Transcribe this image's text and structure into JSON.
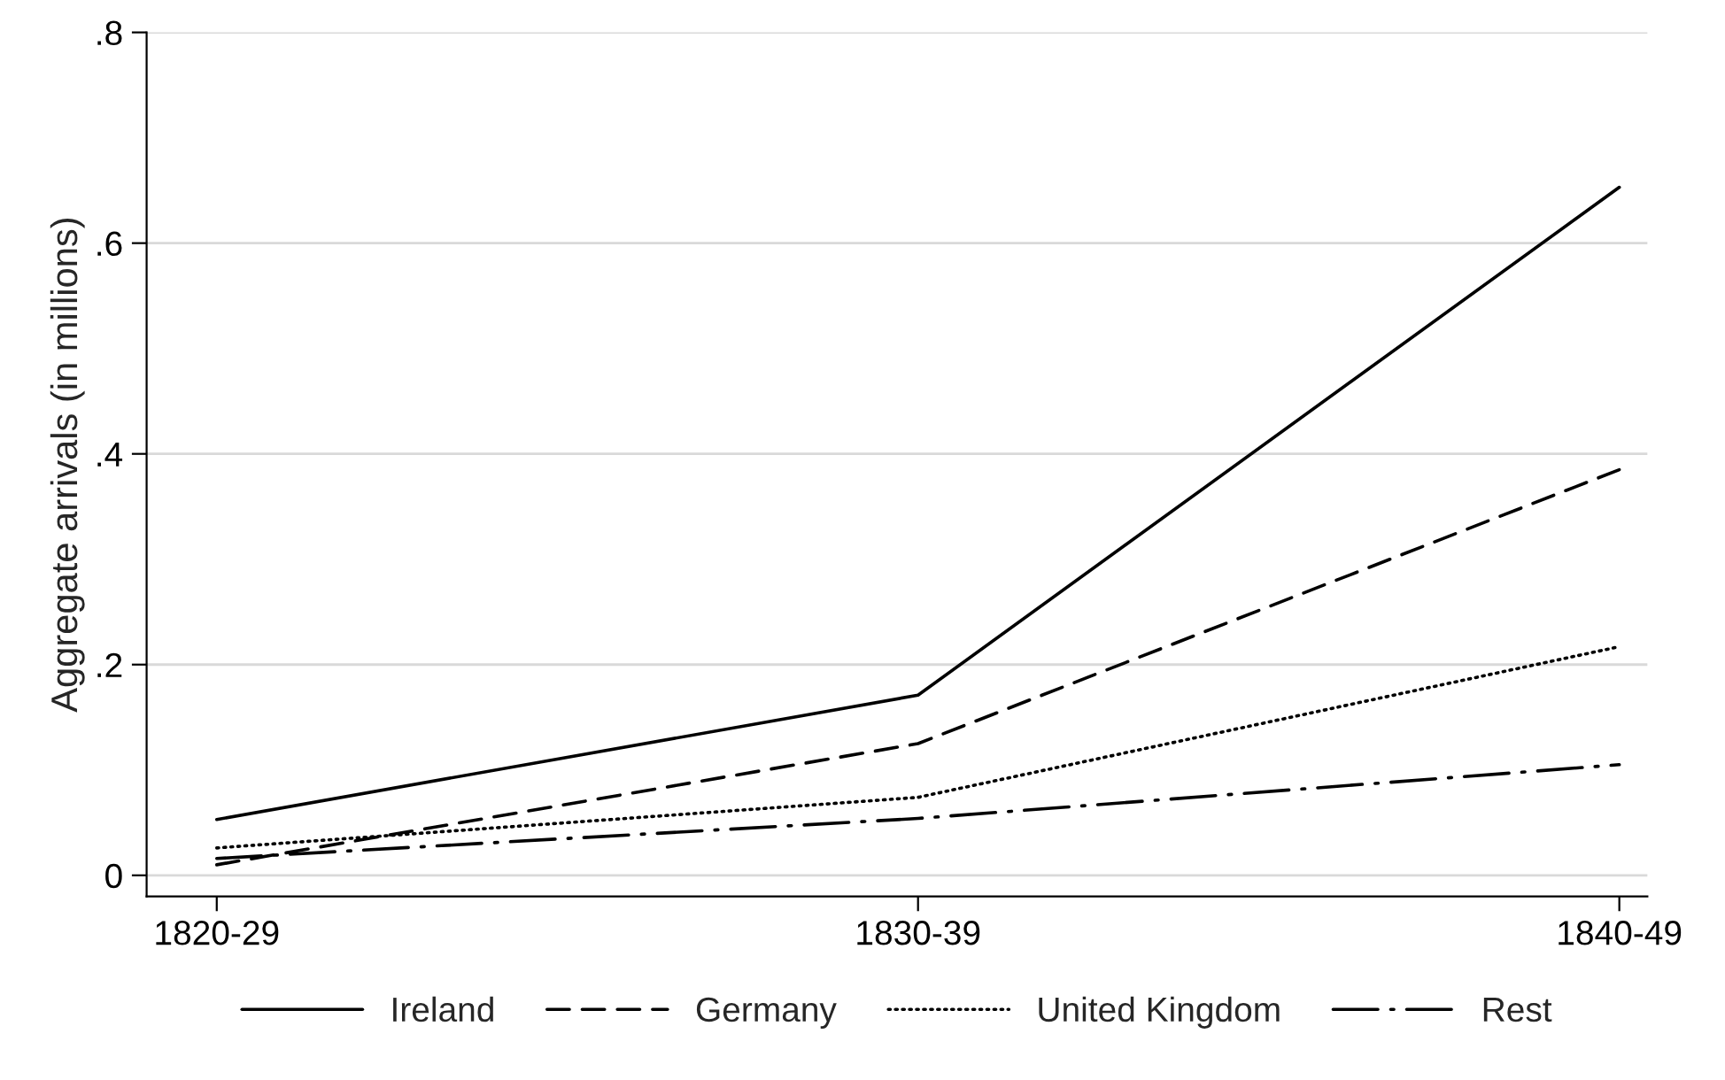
{
  "chart_data": {
    "type": "line",
    "ylabel": "Aggregate arrivals (in millions)",
    "categories": [
      "1820-29",
      "1830-39",
      "1840-49"
    ],
    "series": [
      {
        "name": "Ireland",
        "color": "#000000",
        "line_style": "solid",
        "values": [
          0.053,
          0.171,
          0.653
        ]
      },
      {
        "name": "Germany",
        "color": "#000000",
        "line_style": "dashed",
        "values": [
          0.01,
          0.125,
          0.385
        ]
      },
      {
        "name": "United Kingdom",
        "color": "#000000",
        "line_style": "dotted",
        "values": [
          0.026,
          0.074,
          0.217
        ]
      },
      {
        "name": "Rest",
        "color": "#000000",
        "line_style": "dashdot",
        "values": [
          0.016,
          0.054,
          0.105
        ]
      }
    ],
    "ylim": [
      -0.02,
      0.8
    ],
    "yticks": [
      {
        "value": 0,
        "label": "0"
      },
      {
        "value": 0.2,
        "label": ".2"
      },
      {
        "value": 0.4,
        "label": ".4"
      },
      {
        "value": 0.6,
        "label": ".6"
      },
      {
        "value": 0.8,
        "label": ".8"
      }
    ],
    "grid": "y",
    "legend": "bottom",
    "marker": "none"
  }
}
